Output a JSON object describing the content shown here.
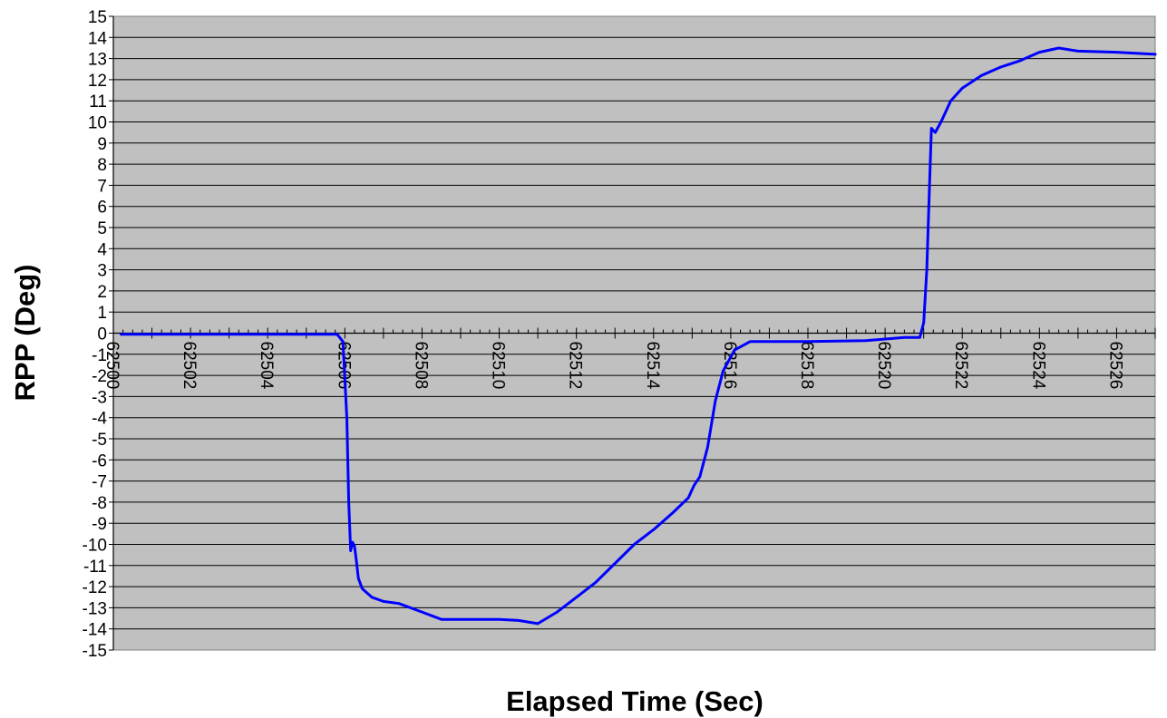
{
  "chart_data": {
    "type": "line",
    "xlabel": "Elapsed Time (Sec)",
    "ylabel": "RPP (Deg)",
    "xlim": [
      62500,
      62527
    ],
    "ylim": [
      -15,
      15
    ],
    "y_ticks": [
      15,
      14,
      13,
      12,
      11,
      10,
      9,
      8,
      7,
      6,
      5,
      4,
      3,
      2,
      1,
      0,
      -1,
      -2,
      -3,
      -4,
      -5,
      -6,
      -7,
      -8,
      -9,
      -10,
      -11,
      -12,
      -13,
      -14,
      -15
    ],
    "x_tick_labels": [
      "62500",
      "62502",
      "62504",
      "62506",
      "62508",
      "62510",
      "62512",
      "62514",
      "62516",
      "62518",
      "62520",
      "62522",
      "62524",
      "62526"
    ],
    "grid": true,
    "legend": "none",
    "plot_background": "#c0c0c0",
    "line_color": "#0000ff",
    "series": [
      {
        "x": [
          62500.2,
          62502,
          62504,
          62505.8,
          62505.95,
          62506.05,
          62506.1,
          62506.15,
          62506.2,
          62506.25,
          62506.3,
          62506.35,
          62506.45,
          62506.7,
          62507,
          62507.4,
          62508,
          62508.5,
          62509,
          62510,
          62510.5,
          62511,
          62511.5,
          62512,
          62512.5,
          62513,
          62513.5,
          62514,
          62514.5,
          62514.9,
          62515.05,
          62515.2,
          62515.4,
          62515.6,
          62515.8,
          62516.1,
          62516.5,
          62518,
          62519.5,
          62520.5,
          62520.9,
          62521,
          62521.08,
          62521.15,
          62521.2,
          62521.3,
          62521.45,
          62521.7,
          62522,
          62522.5,
          62523,
          62523.5,
          62524,
          62524.5,
          62525,
          62526,
          62527
        ],
        "y": [
          -0.05,
          -0.05,
          -0.05,
          -0.05,
          -0.4,
          -4,
          -8,
          -10.3,
          -9.9,
          -10.1,
          -10.8,
          -11.6,
          -12.1,
          -12.5,
          -12.7,
          -12.8,
          -13.2,
          -13.55,
          -13.55,
          -13.55,
          -13.6,
          -13.75,
          -13.2,
          -12.5,
          -11.8,
          -10.9,
          -10.0,
          -9.3,
          -8.5,
          -7.8,
          -7.2,
          -6.8,
          -5.4,
          -3.2,
          -1.8,
          -0.8,
          -0.4,
          -0.4,
          -0.35,
          -0.2,
          -0.2,
          0.5,
          3,
          7,
          9.7,
          9.5,
          10,
          11,
          11.6,
          12.2,
          12.6,
          12.9,
          13.3,
          13.5,
          13.35,
          13.3,
          13.2
        ]
      }
    ]
  }
}
